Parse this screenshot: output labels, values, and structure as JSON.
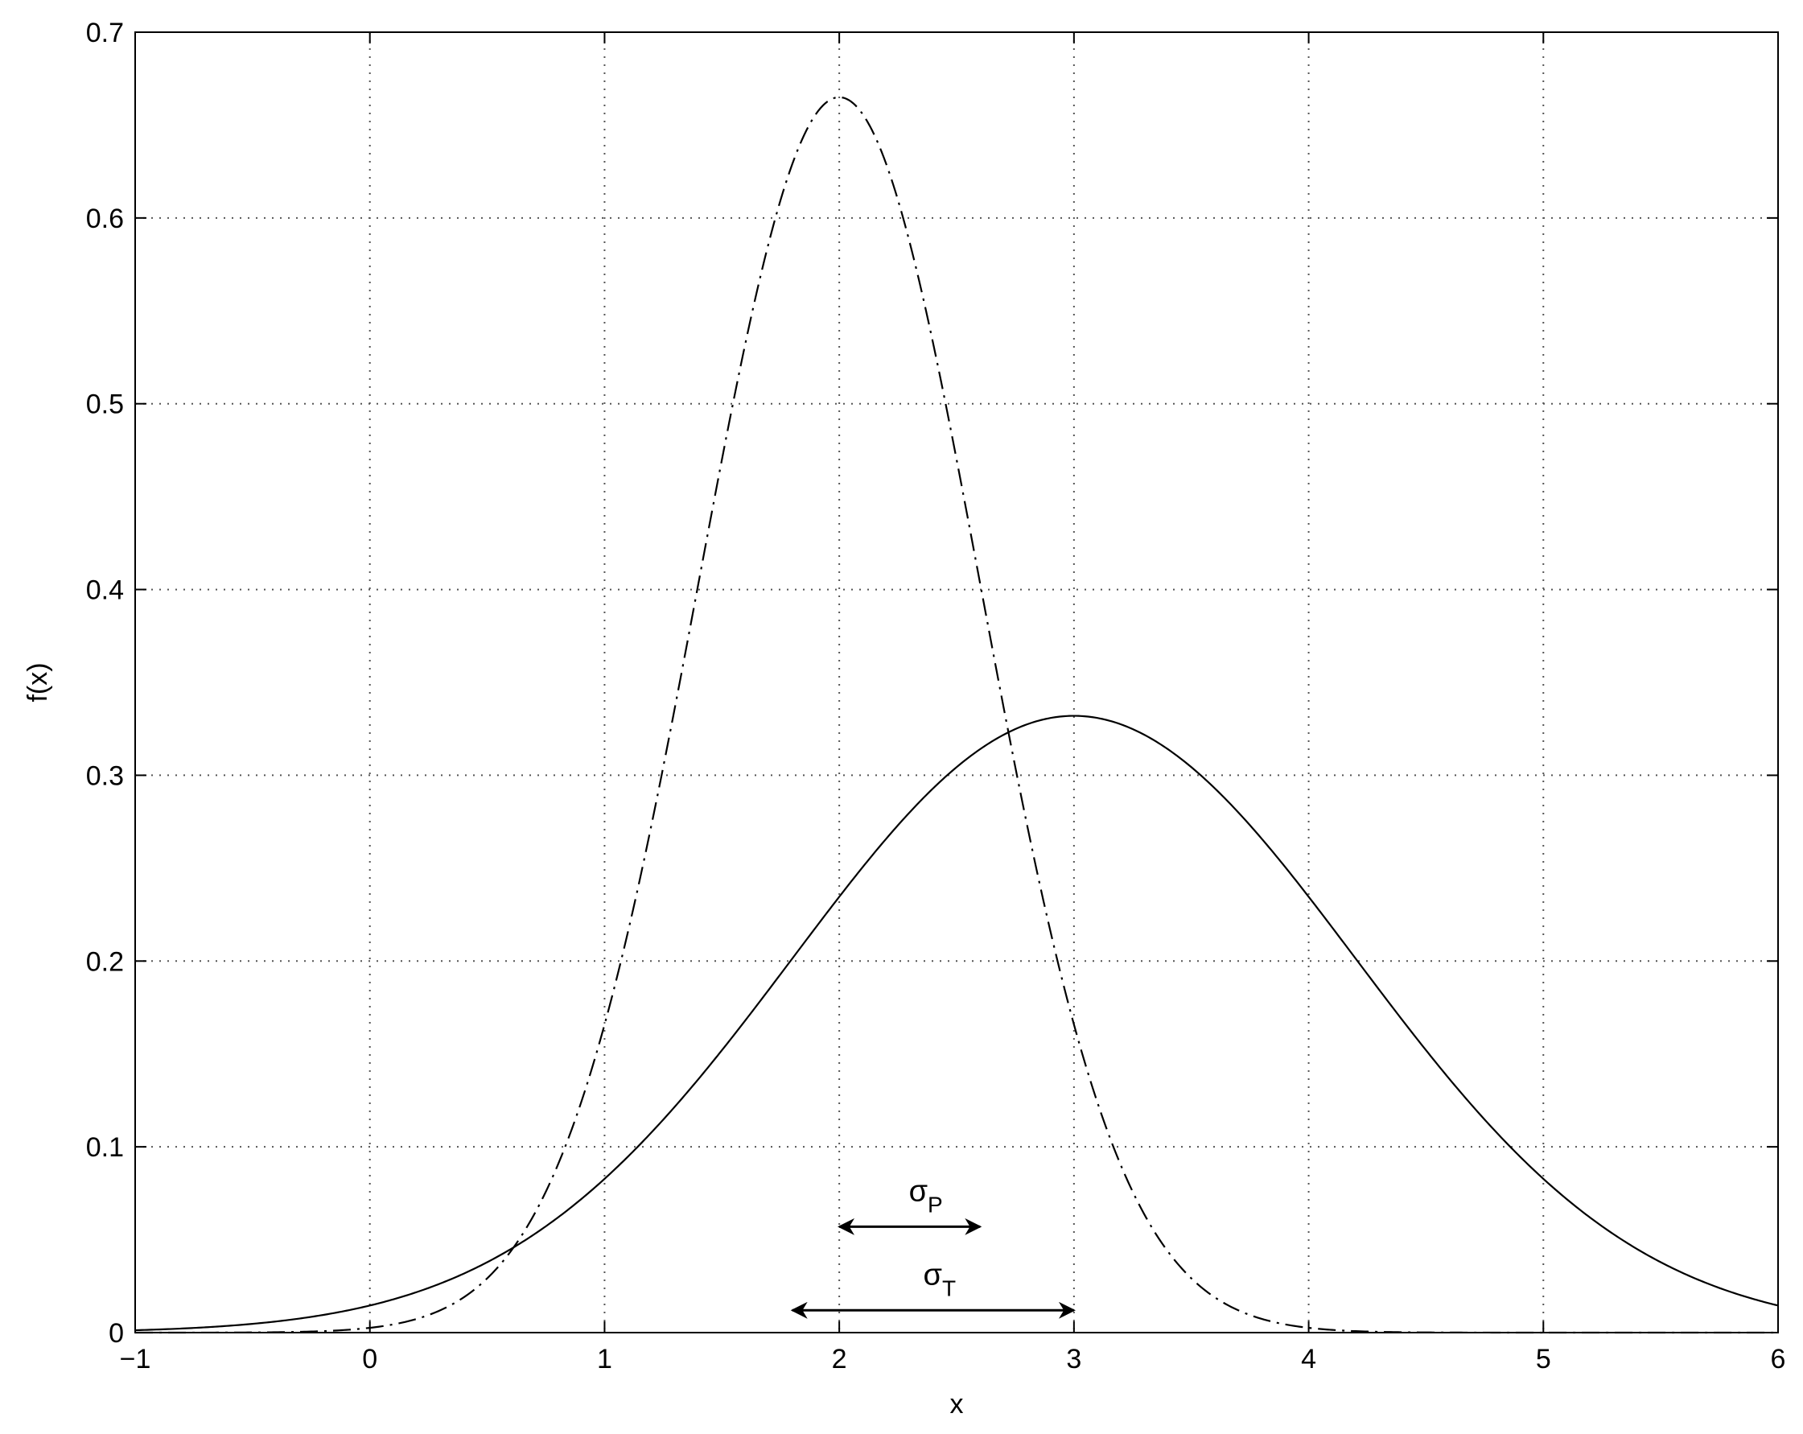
{
  "chart_data": {
    "type": "line",
    "xlabel": "x",
    "ylabel": "f(x)",
    "xlim": [
      -1,
      6
    ],
    "ylim": [
      0,
      0.7
    ],
    "xticks": [
      -1,
      0,
      1,
      2,
      3,
      4,
      5,
      6
    ],
    "xtick_labels": [
      "−1",
      "0",
      "1",
      "2",
      "3",
      "4",
      "5",
      "6"
    ],
    "yticks": [
      0,
      0.1,
      0.2,
      0.3,
      0.4,
      0.5,
      0.6,
      0.7
    ],
    "ytick_labels": [
      "0",
      "0.1",
      "0.2",
      "0.3",
      "0.4",
      "0.5",
      "0.6",
      "0.7"
    ],
    "grid": true,
    "grid_style": "dotted",
    "series": [
      {
        "line_style": "dash-dot",
        "distribution": "normal",
        "mean": 2,
        "std": 0.6,
        "peak": 0.665
      },
      {
        "line_style": "solid",
        "distribution": "normal",
        "mean": 3,
        "std": 1.2,
        "peak": 0.332
      }
    ],
    "annotations": [
      {
        "symbol": "σ",
        "subscript": "P",
        "arrow_from_x": 2.0,
        "arrow_to_x": 2.6,
        "arrow_y": 0.057,
        "double_headed": true
      },
      {
        "symbol": "σ",
        "subscript": "T",
        "arrow_from_x": 1.8,
        "arrow_to_x": 3.0,
        "arrow_y": 0.012,
        "double_headed": true
      }
    ]
  }
}
